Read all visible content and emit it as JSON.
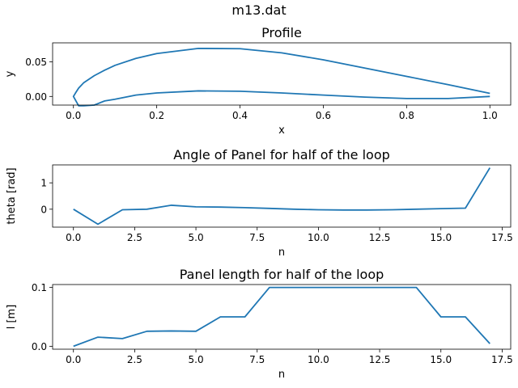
{
  "figure": {
    "suptitle": "m13.dat"
  },
  "style": {
    "line_color": "#1f77b4"
  },
  "chart_data": [
    {
      "type": "line",
      "title": "Profile",
      "xlabel": "x",
      "ylabel": "y",
      "xlim": [
        -0.05,
        1.05
      ],
      "ylim": [
        -0.0125,
        0.0775
      ],
      "xticks": [
        0.0,
        0.2,
        0.4,
        0.6,
        0.8,
        1.0
      ],
      "xtick_labels": [
        "0.0",
        "0.2",
        "0.4",
        "0.6",
        "0.8",
        "1.0"
      ],
      "yticks": [
        0.0,
        0.05
      ],
      "ytick_labels": [
        "0.00",
        "0.05"
      ],
      "series": [
        {
          "x": [
            1.0,
            0.9,
            0.8,
            0.7,
            0.6,
            0.5,
            0.4,
            0.3,
            0.2,
            0.15,
            0.1,
            0.075,
            0.05,
            0.025,
            0.0125,
            0.005,
            0.0,
            0.0125,
            0.025,
            0.05,
            0.075,
            0.1,
            0.15,
            0.2,
            0.3,
            0.4,
            0.5,
            0.6,
            0.7,
            0.8,
            0.9,
            1.0
          ],
          "y": [
            0.0045,
            0.017,
            0.029,
            0.041,
            0.053,
            0.063,
            0.069,
            0.0695,
            0.062,
            0.055,
            0.045,
            0.038,
            0.03,
            0.02,
            0.012,
            0.005,
            0.0,
            -0.0135,
            -0.0135,
            -0.0125,
            -0.0065,
            -0.004,
            0.002,
            0.005,
            0.008,
            0.0075,
            0.005,
            0.002,
            -0.001,
            -0.003,
            -0.003,
            0.0
          ]
        }
      ]
    },
    {
      "type": "line",
      "title": "Angle of Panel for half of the loop",
      "xlabel": "n",
      "ylabel": "theta [rad]",
      "xlim": [
        -0.85,
        17.85
      ],
      "ylim": [
        -0.68,
        1.68
      ],
      "xticks": [
        0,
        2.5,
        5,
        7.5,
        10,
        12.5,
        15,
        17.5
      ],
      "xtick_labels": [
        "0.0",
        "2.5",
        "5.0",
        "7.5",
        "10.0",
        "12.5",
        "15.0",
        "17.5"
      ],
      "yticks": [
        0,
        1
      ],
      "ytick_labels": [
        "0",
        "1"
      ],
      "series": [
        {
          "x": [
            0,
            1,
            2,
            3,
            4,
            5,
            6,
            7,
            8,
            9,
            10,
            11,
            12,
            13,
            14,
            15,
            16,
            17
          ],
          "y": [
            0.0,
            -0.57,
            -0.02,
            0.0,
            0.15,
            0.09,
            0.08,
            0.06,
            0.03,
            0.0,
            -0.02,
            -0.03,
            -0.03,
            -0.02,
            0.0,
            0.02,
            0.04,
            1.57
          ]
        }
      ]
    },
    {
      "type": "line",
      "title": "Panel length for half of the loop",
      "xlabel": "n",
      "ylabel": "l [m]",
      "xlim": [
        -0.85,
        17.85
      ],
      "ylim": [
        -0.005,
        0.105
      ],
      "xticks": [
        0,
        2.5,
        5,
        7.5,
        10,
        12.5,
        15,
        17.5
      ],
      "xtick_labels": [
        "0.0",
        "2.5",
        "5.0",
        "7.5",
        "10.0",
        "12.5",
        "15.0",
        "17.5"
      ],
      "yticks": [
        0.0,
        0.1
      ],
      "ytick_labels": [
        "0.0",
        "0.1"
      ],
      "series": [
        {
          "x": [
            0,
            1,
            2,
            3,
            4,
            5,
            6,
            7,
            8,
            9,
            10,
            11,
            12,
            13,
            14,
            15,
            16,
            17
          ],
          "y": [
            0.0,
            0.0155,
            0.013,
            0.0255,
            0.026,
            0.0255,
            0.05,
            0.05,
            0.1,
            0.1,
            0.1,
            0.1,
            0.1,
            0.1,
            0.1,
            0.05,
            0.05,
            0.0045
          ]
        }
      ]
    }
  ]
}
